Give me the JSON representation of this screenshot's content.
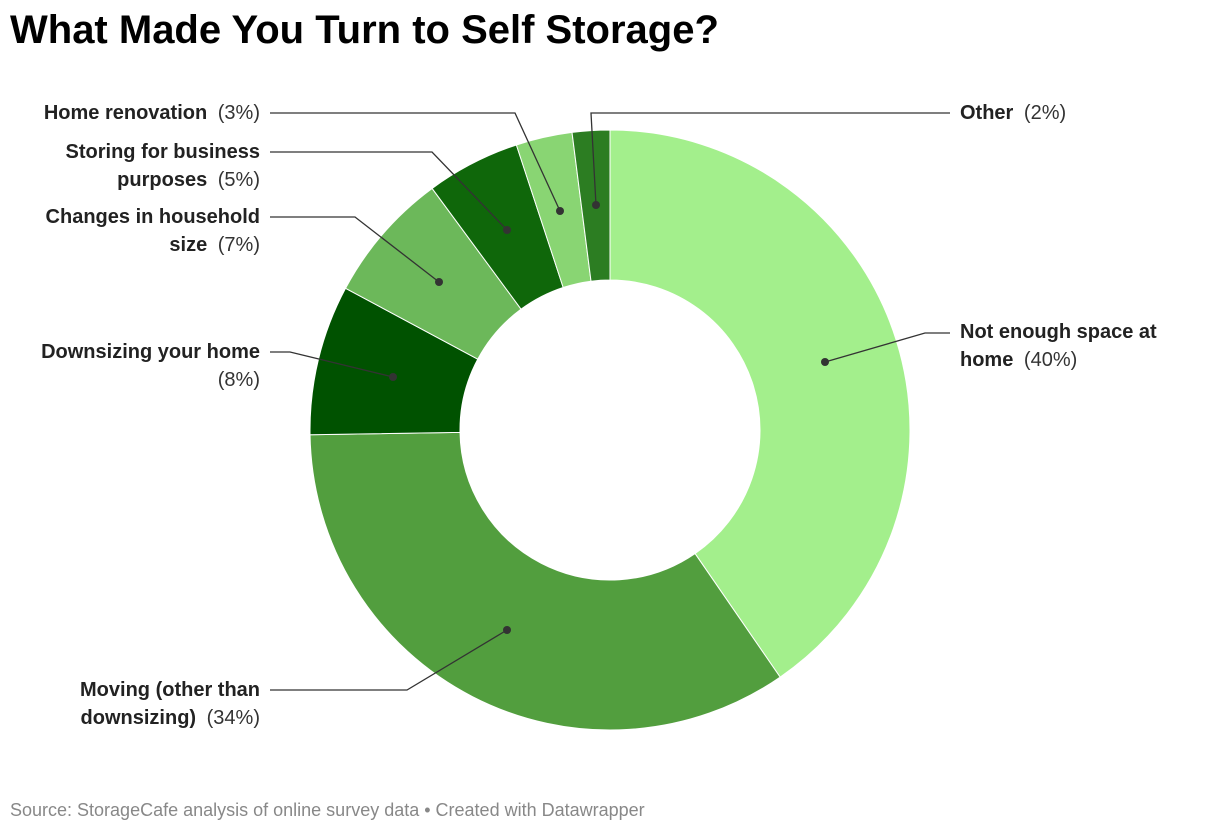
{
  "chart_data": {
    "type": "donut",
    "title": "What Made You Turn to Self Storage?",
    "source": "Source: StorageCafe analysis of online survey data • Created with Datawrapper",
    "categories": [
      "Not enough space at home",
      "Moving (other than downsizing)",
      "Downsizing your home",
      "Changes in household size",
      "Storing for business purposes",
      "Home renovation",
      "Other"
    ],
    "values": [
      40,
      34,
      8,
      7,
      5,
      3,
      2
    ],
    "value_labels": [
      "(40%)",
      "(34%)",
      "(8%)",
      "(7%)",
      "(5%)",
      "(3%)",
      "(2%)"
    ],
    "colors": [
      "#a3ef8c",
      "#529e3e",
      "#005200",
      "#6cb85a",
      "#0f670a",
      "#89d573",
      "#2c7d22"
    ]
  }
}
